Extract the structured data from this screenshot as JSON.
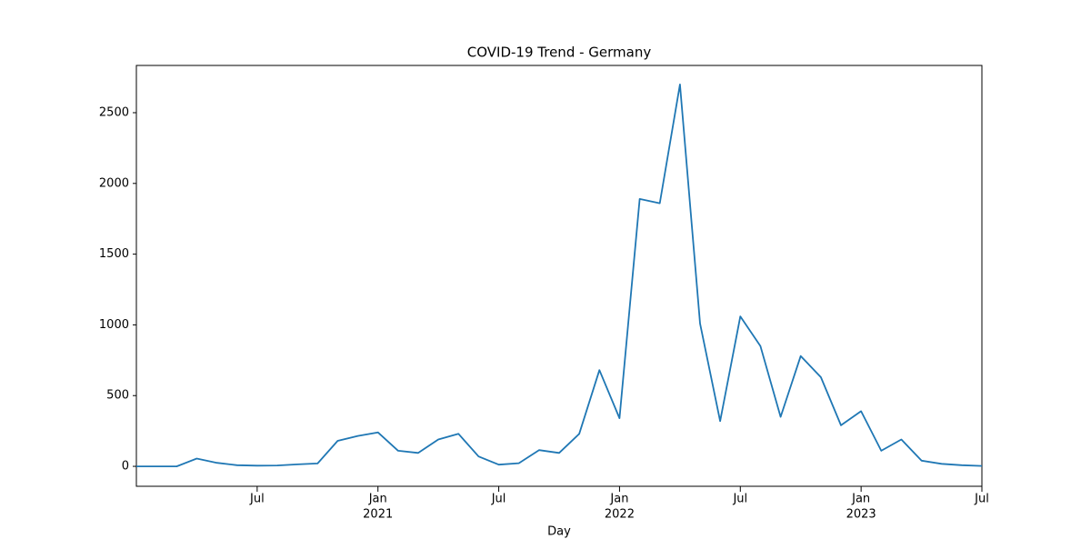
{
  "chart_data": {
    "type": "line",
    "title": "COVID-19 Trend - Germany",
    "xlabel": "Day",
    "x": [
      "2020-01",
      "2020-02",
      "2020-03",
      "2020-04",
      "2020-05",
      "2020-06",
      "2020-07",
      "2020-08",
      "2020-09",
      "2020-10",
      "2020-11",
      "2020-12",
      "2021-01",
      "2021-02",
      "2021-03",
      "2021-04",
      "2021-05",
      "2021-06",
      "2021-07",
      "2021-08",
      "2021-09",
      "2021-10",
      "2021-11",
      "2021-12",
      "2022-01",
      "2022-02",
      "2022-03",
      "2022-04",
      "2022-05",
      "2022-06",
      "2022-07",
      "2022-08",
      "2022-09",
      "2022-10",
      "2022-11",
      "2022-12",
      "2023-01",
      "2023-02",
      "2023-03",
      "2023-04",
      "2023-05",
      "2023-06",
      "2023-07"
    ],
    "values": [
      0,
      0,
      0,
      55,
      25,
      8,
      5,
      6,
      14,
      20,
      180,
      215,
      240,
      110,
      95,
      190,
      230,
      70,
      12,
      22,
      115,
      95,
      230,
      680,
      340,
      1890,
      1860,
      2700,
      1010,
      320,
      1060,
      850,
      350,
      780,
      630,
      290,
      390,
      110,
      190,
      40,
      18,
      8,
      3
    ],
    "color": "#1f77b4",
    "xlim": [
      "2020-01",
      "2023-07"
    ],
    "xticks": [
      {
        "value": "2020-07",
        "label": "Jul"
      },
      {
        "value": "2021-01",
        "label": "Jan",
        "sublabel": "2021"
      },
      {
        "value": "2021-07",
        "label": "Jul"
      },
      {
        "value": "2022-01",
        "label": "Jan",
        "sublabel": "2022"
      },
      {
        "value": "2022-07",
        "label": "Jul"
      },
      {
        "value": "2023-01",
        "label": "Jan",
        "sublabel": "2023"
      },
      {
        "value": "2023-07",
        "label": "Jul"
      }
    ],
    "ylim": [
      -141,
      2834
    ],
    "yticks": [
      0,
      500,
      1000,
      1500,
      2000,
      2500
    ]
  }
}
